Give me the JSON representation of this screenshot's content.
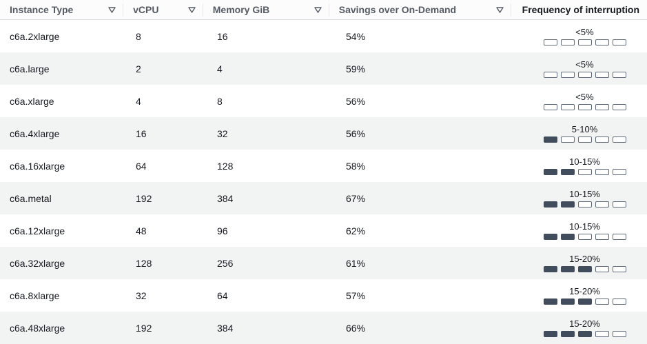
{
  "table": {
    "name": "spot-instance-advisor-table",
    "columns": [
      {
        "label": "Instance Type",
        "has_filter": true
      },
      {
        "label": "vCPU",
        "has_filter": true
      },
      {
        "label": "Memory GiB",
        "has_filter": true
      },
      {
        "label": "Savings over On-Demand",
        "has_filter": true
      },
      {
        "label": "Frequency of interruption",
        "has_filter": false
      }
    ],
    "filter_icon": {
      "name": "filter-icon",
      "glyph": "▽"
    },
    "interruption_meter": {
      "total_bars": 5
    },
    "rows": [
      {
        "instance_type": "c6a.2xlarge",
        "vcpu": "8",
        "memory_gib": "16",
        "savings": "54%",
        "interruption_label": "<5%",
        "interruption_level": 0
      },
      {
        "instance_type": "c6a.large",
        "vcpu": "2",
        "memory_gib": "4",
        "savings": "59%",
        "interruption_label": "<5%",
        "interruption_level": 0
      },
      {
        "instance_type": "c6a.xlarge",
        "vcpu": "4",
        "memory_gib": "8",
        "savings": "56%",
        "interruption_label": "<5%",
        "interruption_level": 0
      },
      {
        "instance_type": "c6a.4xlarge",
        "vcpu": "16",
        "memory_gib": "32",
        "savings": "56%",
        "interruption_label": "5-10%",
        "interruption_level": 1
      },
      {
        "instance_type": "c6a.16xlarge",
        "vcpu": "64",
        "memory_gib": "128",
        "savings": "58%",
        "interruption_label": "10-15%",
        "interruption_level": 2
      },
      {
        "instance_type": "c6a.metal",
        "vcpu": "192",
        "memory_gib": "384",
        "savings": "67%",
        "interruption_label": "10-15%",
        "interruption_level": 2
      },
      {
        "instance_type": "c6a.12xlarge",
        "vcpu": "48",
        "memory_gib": "96",
        "savings": "62%",
        "interruption_label": "10-15%",
        "interruption_level": 2
      },
      {
        "instance_type": "c6a.32xlarge",
        "vcpu": "128",
        "memory_gib": "256",
        "savings": "61%",
        "interruption_label": "15-20%",
        "interruption_level": 3
      },
      {
        "instance_type": "c6a.8xlarge",
        "vcpu": "32",
        "memory_gib": "64",
        "savings": "57%",
        "interruption_label": "15-20%",
        "interruption_level": 3
      },
      {
        "instance_type": "c6a.48xlarge",
        "vcpu": "192",
        "memory_gib": "384",
        "savings": "66%",
        "interruption_label": "15-20%",
        "interruption_level": 3
      }
    ]
  },
  "colors": {
    "header_text": "#545b64",
    "frequency_header_text": "#16191f",
    "body_text": "#16191f",
    "alt_row_bg": "#f2f3f3",
    "header_border": "#d5d9dd",
    "bar_filled": "#414d5c",
    "bar_border": "#5f6b7a"
  }
}
